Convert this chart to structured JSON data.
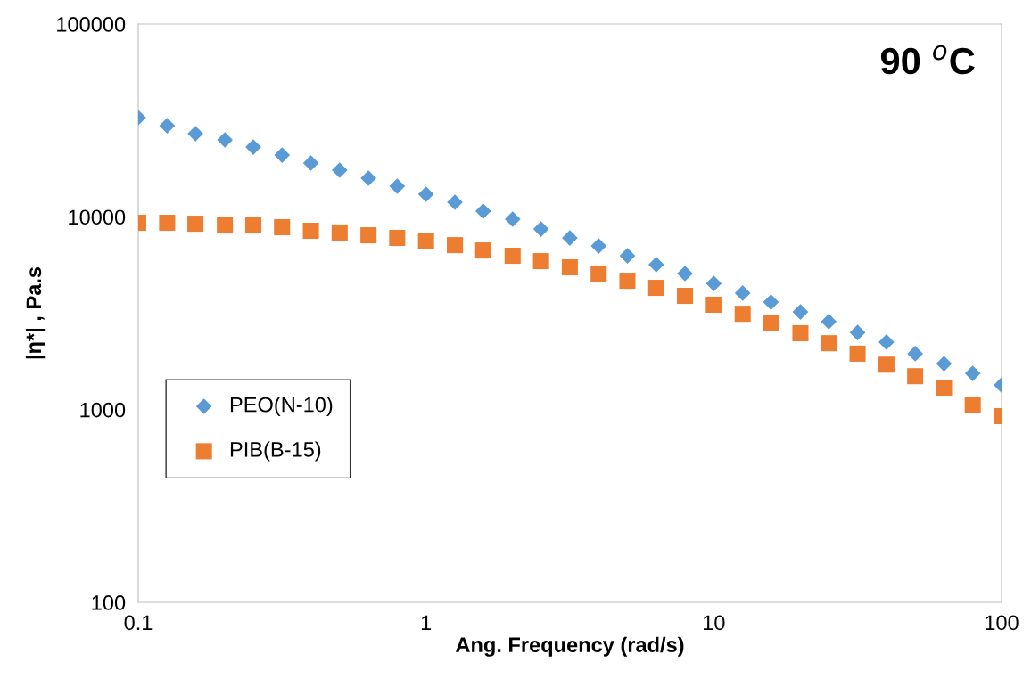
{
  "chart_data": {
    "type": "scatter",
    "xlabel": "Ang. Frequency (rad/s)",
    "ylabel": "|η*| , Pa.s",
    "log": "xy",
    "grid": false,
    "legend": "left",
    "annotations": [
      "90 $^{o}$C"
    ],
    "x": [
      0.1,
      0.126,
      0.158,
      0.2,
      0.251,
      0.316,
      0.398,
      0.501,
      0.631,
      0.794,
      1,
      1.26,
      1.58,
      2,
      2.51,
      3.16,
      3.98,
      5.01,
      6.31,
      7.94,
      10,
      12.6,
      15.8,
      20,
      25.1,
      31.6,
      39.8,
      50.1,
      63.1,
      79.4,
      100
    ],
    "xlim": [
      0.1,
      100
    ],
    "xticks": [
      0.1,
      1,
      10,
      100
    ],
    "ylim": [
      100,
      100000
    ],
    "yticks": [
      100,
      1000,
      10000,
      100000
    ],
    "series": [
      {
        "name": "PEO(N-10)",
        "color": "#5b9bd5",
        "marker": "diamond",
        "values": [
          32700,
          29700,
          27000,
          25060,
          23000,
          20900,
          19000,
          17450,
          15860,
          14410,
          13090,
          11900,
          10700,
          9720,
          8640,
          7770,
          7060,
          6280,
          5650,
          5080,
          4510,
          4020,
          3610,
          3210,
          2860,
          2510,
          2240,
          1950,
          1730,
          1540,
          1340
        ]
      },
      {
        "name": "PIB(B-15)",
        "color": "#ed7d31",
        "marker": "square",
        "values": [
          9310,
          9310,
          9210,
          9020,
          9020,
          8830,
          8460,
          8290,
          8020,
          7770,
          7520,
          7130,
          6690,
          6280,
          5890,
          5470,
          5080,
          4660,
          4280,
          3890,
          3500,
          3140,
          2800,
          2490,
          2210,
          1950,
          1710,
          1490,
          1300,
          1060,
          925
        ]
      }
    ]
  }
}
